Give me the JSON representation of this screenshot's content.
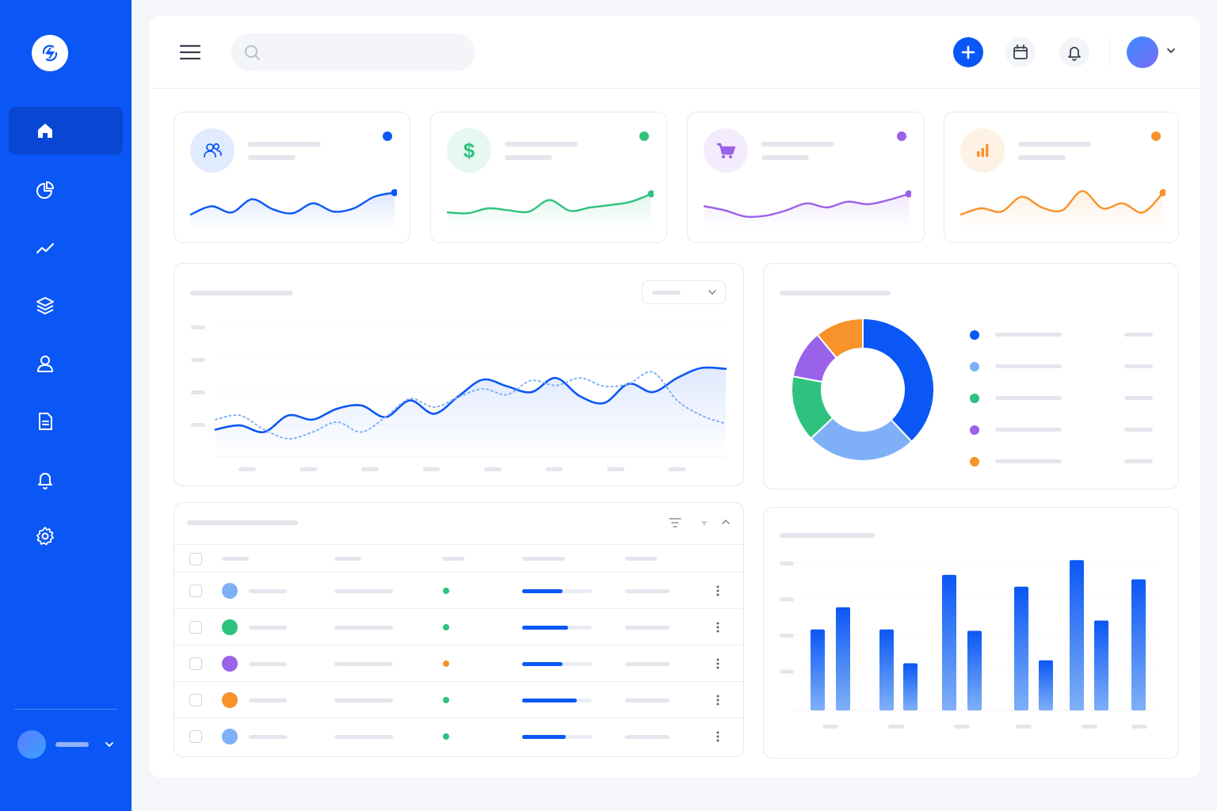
{
  "colors": {
    "brand": "#0b57f5",
    "blue": "#0b57f5",
    "light_blue": "#7fb0f7",
    "green": "#2ec27e",
    "purple": "#9a62e8",
    "orange": "#f7932a",
    "bar_placeholder": "#e3e6ec"
  },
  "sidebar": {
    "logo_icon": "bolt-logo-icon",
    "items": [
      {
        "name": "home",
        "icon": "home-icon",
        "active": true
      },
      {
        "name": "analytics",
        "icon": "pie-chart-icon",
        "active": false
      },
      {
        "name": "trends",
        "icon": "trend-line-icon",
        "active": false
      },
      {
        "name": "layers",
        "icon": "layers-icon",
        "active": false
      },
      {
        "name": "users",
        "icon": "user-icon",
        "active": false
      },
      {
        "name": "documents",
        "icon": "document-icon",
        "active": false
      },
      {
        "name": "notifications",
        "icon": "bell-icon",
        "active": false
      },
      {
        "name": "settings",
        "icon": "gear-icon",
        "active": false
      }
    ]
  },
  "topbar": {
    "search_placeholder": "",
    "buttons": [
      "add-icon",
      "calendar-icon",
      "bell-icon"
    ]
  },
  "stat_cards": [
    {
      "icon": "users-icon",
      "color": "#0b57f5",
      "trend": [
        0.35,
        0.55,
        0.4,
        0.72,
        0.48,
        0.38,
        0.62,
        0.42,
        0.5,
        0.78,
        0.88
      ]
    },
    {
      "icon": "dollar-icon",
      "color": "#2ec27e",
      "trend": [
        0.4,
        0.38,
        0.5,
        0.45,
        0.42,
        0.7,
        0.44,
        0.52,
        0.58,
        0.66,
        0.85
      ]
    },
    {
      "icon": "cart-icon",
      "color": "#9a62e8",
      "trend": [
        0.55,
        0.45,
        0.3,
        0.32,
        0.45,
        0.62,
        0.52,
        0.66,
        0.6,
        0.7,
        0.85
      ]
    },
    {
      "icon": "bar-chart-icon",
      "color": "#f7932a",
      "trend": [
        0.35,
        0.5,
        0.42,
        0.78,
        0.52,
        0.45,
        0.92,
        0.5,
        0.62,
        0.4,
        0.88
      ]
    }
  ],
  "chart_data": [
    {
      "type": "area",
      "title": "",
      "y_ticks": 4,
      "x_ticks": 8,
      "grid": true,
      "series": [
        {
          "style": "solid",
          "values": [
            0.33,
            0.38,
            0.3,
            0.5,
            0.45,
            0.58,
            0.62,
            0.48,
            0.68,
            0.52,
            0.73,
            0.93,
            0.85,
            0.78,
            0.95,
            0.73,
            0.65,
            0.88,
            0.78,
            0.95,
            1.07,
            1.06
          ]
        },
        {
          "style": "dashed",
          "values": [
            0.45,
            0.5,
            0.33,
            0.22,
            0.3,
            0.42,
            0.3,
            0.48,
            0.7,
            0.6,
            0.72,
            0.82,
            0.75,
            0.92,
            0.86,
            0.95,
            0.85,
            0.88,
            1.02,
            0.68,
            0.5,
            0.4
          ]
        }
      ]
    },
    {
      "type": "pie",
      "title": "",
      "donut": true,
      "slices": [
        {
          "value": 38,
          "color": "#0b57f5"
        },
        {
          "value": 25,
          "color": "#7fb0f7"
        },
        {
          "value": 15,
          "color": "#2ec27e"
        },
        {
          "value": 11,
          "color": "#9a62e8"
        },
        {
          "value": 11,
          "color": "#f7932a"
        }
      ]
    },
    {
      "type": "bar",
      "title": "",
      "y_ticks": 4,
      "ylim": [
        0,
        100
      ],
      "values": [
        55,
        70,
        55,
        32,
        92,
        54,
        84,
        34,
        102,
        61,
        89
      ]
    }
  ],
  "table": {
    "columns": 5,
    "rows": [
      {
        "avatar_color": "#7fb0f7",
        "status_color": "#2ec27e",
        "progress": 0.58
      },
      {
        "avatar_color": "#2ec27e",
        "status_color": "#2ec27e",
        "progress": 0.66
      },
      {
        "avatar_color": "#9a62e8",
        "status_color": "#f7932a",
        "progress": 0.58
      },
      {
        "avatar_color": "#f7932a",
        "status_color": "#2ec27e",
        "progress": 0.78
      },
      {
        "avatar_color": "#7fb0f7",
        "status_color": "#2ec27e",
        "progress": 0.62
      }
    ]
  }
}
